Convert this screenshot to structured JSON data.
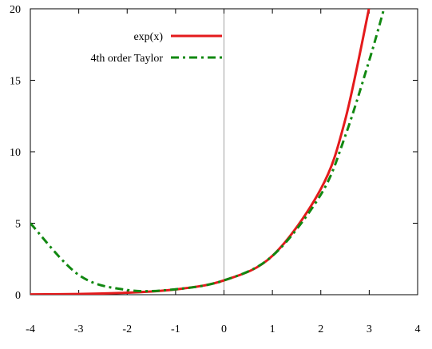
{
  "chart_data": {
    "type": "line",
    "title": "",
    "xlabel": "",
    "ylabel": "",
    "xlim": [
      -4,
      4
    ],
    "ylim": [
      0,
      20
    ],
    "x_ticks": [
      "-4",
      "-3",
      "-2",
      "-1",
      "0",
      "1",
      "2",
      "3",
      "4"
    ],
    "y_ticks": [
      "0",
      "5",
      "10",
      "15",
      "20"
    ],
    "zero_axis_x": 0,
    "grid": false,
    "legend_position": "top-left",
    "series": [
      {
        "name": "exp(x)",
        "color": "#e41a1c",
        "style": "solid",
        "x": [
          -4,
          -3,
          -2,
          -1,
          0,
          1,
          2,
          2.5,
          3
        ],
        "y": [
          0.02,
          0.05,
          0.14,
          0.37,
          1,
          2.72,
          7.39,
          12.18,
          20.09
        ]
      },
      {
        "name": "4th order Taylor",
        "color": "#118811",
        "style": "dash-dot",
        "x": [
          -4,
          -3,
          -2,
          -1,
          0,
          1,
          2,
          2.5,
          3,
          3.3
        ],
        "y": [
          5.0,
          1.38,
          0.33,
          0.38,
          1,
          2.71,
          7.0,
          11.06,
          16.38,
          19.94
        ]
      }
    ]
  }
}
